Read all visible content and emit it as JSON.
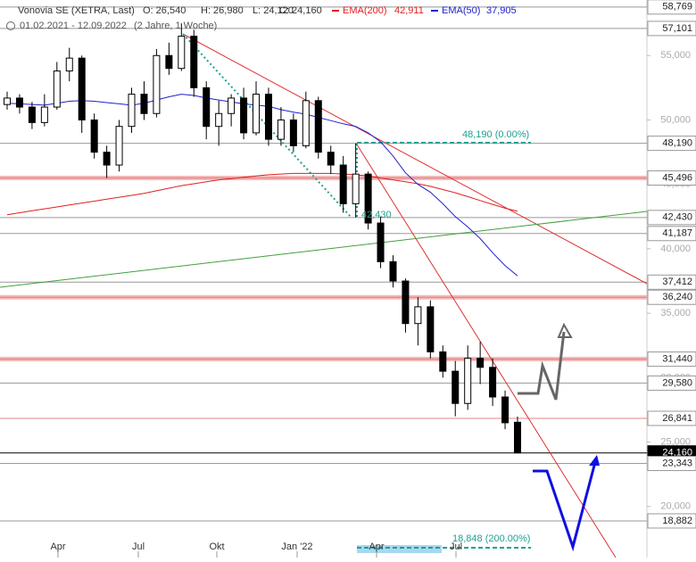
{
  "chart_data": {
    "type": "candlestick",
    "title": "Vonovia SE (XETRA, Last)",
    "header": {
      "open": "O: 26,540",
      "high": "H: 26,980",
      "low": "L: 24,120",
      "close": "C: 24,160",
      "ema200_name": "EMA(200)",
      "ema200_value": "42,911",
      "ema50_name": "EMA(50)",
      "ema50_value": "37,905",
      "range": "01.02.2021 - 12.09.2022",
      "period": "(2 Jahre, 1 Woche)"
    },
    "ylim": [
      16040,
      59310
    ],
    "yticks": [
      {
        "value": 20000,
        "label": "20,000"
      },
      {
        "value": 25000,
        "label": "25,000"
      },
      {
        "value": 30000,
        "label": "30,000"
      },
      {
        "value": 35000,
        "label": "35,000"
      },
      {
        "value": 40000,
        "label": "40,000"
      },
      {
        "value": 45000,
        "label": "45,000"
      },
      {
        "value": 50000,
        "label": "50,000"
      },
      {
        "value": 55000,
        "label": "55,000"
      }
    ],
    "xticks": [
      "Apr",
      "Jul",
      "Okt",
      "Jan '22",
      "Apr",
      "Jul"
    ],
    "candles": [
      {
        "o": 51200,
        "h": 52200,
        "l": 50800,
        "c": 51700
      },
      {
        "o": 51700,
        "h": 52000,
        "l": 50500,
        "c": 51000
      },
      {
        "o": 51000,
        "h": 51400,
        "l": 49300,
        "c": 49800
      },
      {
        "o": 49800,
        "h": 52000,
        "l": 49500,
        "c": 51000
      },
      {
        "o": 51000,
        "h": 54500,
        "l": 50800,
        "c": 53800
      },
      {
        "o": 53800,
        "h": 55600,
        "l": 53000,
        "c": 54800
      },
      {
        "o": 54800,
        "h": 55000,
        "l": 49000,
        "c": 50000
      },
      {
        "o": 50000,
        "h": 50500,
        "l": 47000,
        "c": 47500
      },
      {
        "o": 47500,
        "h": 48000,
        "l": 45500,
        "c": 46500
      },
      {
        "o": 46500,
        "h": 50000,
        "l": 46000,
        "c": 49500
      },
      {
        "o": 49500,
        "h": 52500,
        "l": 49000,
        "c": 52000
      },
      {
        "o": 52000,
        "h": 53000,
        "l": 50000,
        "c": 50500
      },
      {
        "o": 50500,
        "h": 55500,
        "l": 50200,
        "c": 55000
      },
      {
        "o": 55000,
        "h": 56000,
        "l": 53500,
        "c": 54000
      },
      {
        "o": 54000,
        "h": 57500,
        "l": 53800,
        "c": 56500
      },
      {
        "o": 56500,
        "h": 57000,
        "l": 51800,
        "c": 52500
      },
      {
        "o": 52500,
        "h": 53000,
        "l": 48500,
        "c": 49500
      },
      {
        "o": 49500,
        "h": 51500,
        "l": 48000,
        "c": 50500
      },
      {
        "o": 50500,
        "h": 52000,
        "l": 49500,
        "c": 51700
      },
      {
        "o": 51700,
        "h": 52500,
        "l": 48500,
        "c": 49000
      },
      {
        "o": 49000,
        "h": 53000,
        "l": 48800,
        "c": 52000
      },
      {
        "o": 52000,
        "h": 52500,
        "l": 48000,
        "c": 48500
      },
      {
        "o": 48500,
        "h": 51000,
        "l": 48000,
        "c": 50000
      },
      {
        "o": 50000,
        "h": 50500,
        "l": 47500,
        "c": 48000
      },
      {
        "o": 48000,
        "h": 52200,
        "l": 47800,
        "c": 51500
      },
      {
        "o": 51500,
        "h": 51800,
        "l": 47000,
        "c": 47500
      },
      {
        "o": 47500,
        "h": 48000,
        "l": 45800,
        "c": 46500
      },
      {
        "o": 46500,
        "h": 47200,
        "l": 42800,
        "c": 43500
      },
      {
        "o": 43500,
        "h": 48190,
        "l": 42430,
        "c": 45800
      },
      {
        "o": 45800,
        "h": 46000,
        "l": 41500,
        "c": 42000
      },
      {
        "o": 42000,
        "h": 42500,
        "l": 38500,
        "c": 39000
      },
      {
        "o": 39000,
        "h": 39500,
        "l": 37000,
        "c": 37500
      },
      {
        "o": 37500,
        "h": 37700,
        "l": 33500,
        "c": 34200
      },
      {
        "o": 34200,
        "h": 36240,
        "l": 32500,
        "c": 35500
      },
      {
        "o": 35500,
        "h": 36000,
        "l": 31500,
        "c": 32000
      },
      {
        "o": 32000,
        "h": 32500,
        "l": 30000,
        "c": 30500
      },
      {
        "o": 30500,
        "h": 31300,
        "l": 27000,
        "c": 28000
      },
      {
        "o": 28000,
        "h": 32500,
        "l": 27500,
        "c": 31500
      },
      {
        "o": 31500,
        "h": 32800,
        "l": 29500,
        "c": 30800
      },
      {
        "o": 30800,
        "h": 31500,
        "l": 27800,
        "c": 28500
      },
      {
        "o": 28500,
        "h": 29000,
        "l": 26000,
        "c": 26500
      },
      {
        "o": 26540,
        "h": 26980,
        "l": 24120,
        "c": 24160
      }
    ],
    "series": [
      {
        "name": "EMA(200)",
        "color": "#e02020",
        "values": [
          42640,
          42800,
          42950,
          43100,
          43250,
          43400,
          43550,
          43700,
          43850,
          44000,
          44150,
          44300,
          44500,
          44700,
          44900,
          45050,
          45200,
          45350,
          45450,
          45550,
          45650,
          45750,
          45800,
          45850,
          45850,
          45850,
          45850,
          45800,
          45750,
          45650,
          45500,
          45350,
          45200,
          45050,
          44850,
          44600,
          44350,
          44050,
          43750,
          43450,
          43150,
          42911
        ]
      },
      {
        "name": "EMA(50)",
        "color": "#2020d0",
        "values": [
          51300,
          51250,
          51200,
          51150,
          51300,
          51450,
          51500,
          51450,
          51350,
          51250,
          51150,
          51300,
          51550,
          51800,
          52000,
          51900,
          51700,
          51550,
          51400,
          51250,
          51150,
          51050,
          50800,
          50600,
          50450,
          50200,
          49950,
          49700,
          49500,
          49000,
          48300,
          47200,
          45900,
          45000,
          44400,
          43500,
          42500,
          41700,
          40800,
          39700,
          38700,
          37905
        ]
      }
    ],
    "levels": [
      {
        "value": 58769,
        "label": "58,769",
        "color": "#999999"
      },
      {
        "value": 57101,
        "label": "57,101",
        "color": "#999999"
      },
      {
        "value": 48190,
        "label": "48,190",
        "color": "#999999"
      },
      {
        "value": 45496,
        "label": "45,496",
        "color": "#f4b8b8"
      },
      {
        "value": 42430,
        "label": "42,430",
        "color": "#999999"
      },
      {
        "value": 41187,
        "label": "41,187",
        "color": "#999999"
      },
      {
        "value": 37412,
        "label": "37,412",
        "color": "#999999"
      },
      {
        "value": 36240,
        "label": "36,240",
        "color": "#f4b8b8"
      },
      {
        "value": 31440,
        "label": "31,440",
        "color": "#f4b8b8"
      },
      {
        "value": 29580,
        "label": "29,580",
        "color": "#999999"
      },
      {
        "value": 26841,
        "label": "26,841",
        "color": "#e88080"
      },
      {
        "value": 24160,
        "label": "24,160",
        "color": "#000000"
      },
      {
        "value": 23343,
        "label": "23,343",
        "color": "#70b870"
      },
      {
        "value": 18882,
        "label": "18,882",
        "color": "#999999"
      }
    ],
    "annotations": [
      "48,190 (0.00%)",
      "42,430",
      "18,848 (200.00%)"
    ]
  }
}
